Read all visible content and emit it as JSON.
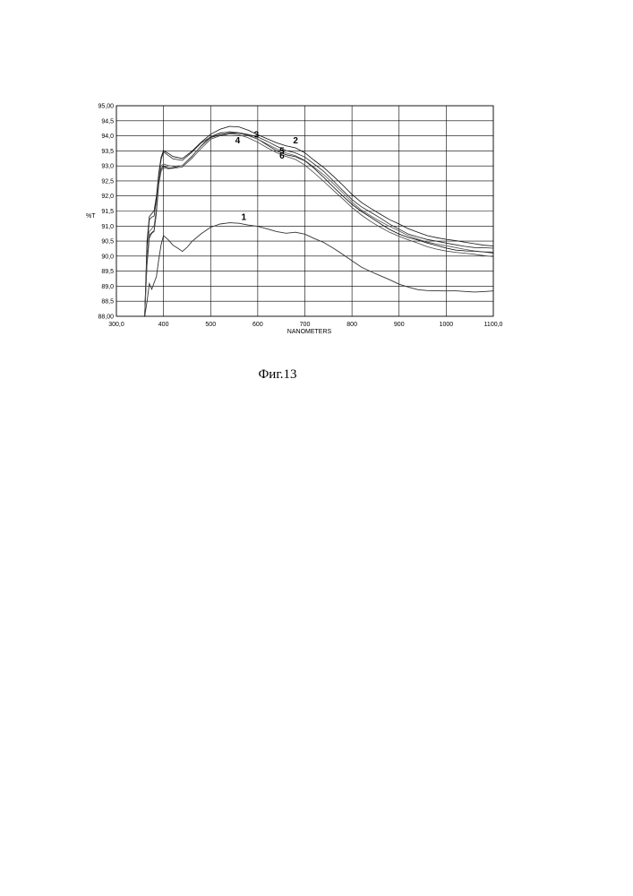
{
  "caption": "Фиг.13",
  "chart_data": {
    "type": "line",
    "xlabel": "NANOMETERS",
    "ylabel": "%T",
    "xlim": [
      300,
      1100
    ],
    "ylim": [
      88.0,
      95.0
    ],
    "x_ticks": [
      300,
      400,
      500,
      600,
      700,
      800,
      900,
      1000,
      1100
    ],
    "x_tick_labels": [
      "300,0",
      "400",
      "500",
      "600",
      "700",
      "800",
      "900",
      "1000",
      "1100,0"
    ],
    "y_ticks": [
      88.0,
      88.5,
      89.0,
      89.5,
      90.0,
      90.5,
      91.0,
      91.5,
      92.0,
      92.5,
      93.0,
      93.5,
      94.0,
      94.5,
      95.0
    ],
    "y_tick_labels": [
      "88,00",
      "88,5",
      "89,0",
      "89,5",
      "90,0",
      "90,5",
      "91,0",
      "91,5",
      "92,0",
      "92,5",
      "93,0",
      "93,5",
      "94,0",
      "94,5",
      "95,00"
    ],
    "grid": true,
    "series": [
      {
        "name": "1",
        "x": [
          360,
          365,
          370,
          375,
          380,
          385,
          390,
          395,
          400,
          410,
          420,
          430,
          440,
          450,
          460,
          480,
          500,
          520,
          540,
          560,
          580,
          600,
          620,
          640,
          660,
          680,
          700,
          720,
          740,
          760,
          780,
          800,
          820,
          840,
          860,
          880,
          900,
          920,
          940,
          960,
          980,
          1000,
          1020,
          1040,
          1060,
          1080,
          1100
        ],
        "y": [
          88.0,
          88.5,
          89.1,
          88.9,
          89.1,
          89.3,
          89.9,
          90.4,
          90.7,
          90.55,
          90.35,
          90.25,
          90.15,
          90.3,
          90.5,
          90.75,
          90.95,
          91.05,
          91.1,
          91.1,
          91.05,
          91.0,
          90.9,
          90.8,
          90.75,
          90.8,
          90.75,
          90.6,
          90.45,
          90.25,
          90.05,
          89.85,
          89.65,
          89.5,
          89.35,
          89.2,
          89.05,
          88.97,
          88.9,
          88.87,
          88.85,
          88.83,
          88.83,
          88.82,
          88.82,
          88.84,
          88.85
        ],
        "color": "#333333"
      },
      {
        "name": "2",
        "x": [
          360,
          365,
          370,
          375,
          380,
          385,
          390,
          395,
          400,
          410,
          420,
          440,
          460,
          480,
          500,
          520,
          540,
          560,
          580,
          600,
          620,
          640,
          660,
          680,
          700,
          720,
          740,
          760,
          780,
          800,
          820,
          840,
          860,
          880,
          900,
          920,
          940,
          960,
          980,
          1000,
          1020,
          1040,
          1060,
          1080,
          1100
        ],
        "y": [
          88.0,
          90.5,
          91.3,
          91.4,
          91.5,
          92.0,
          92.8,
          93.3,
          93.5,
          93.4,
          93.3,
          93.25,
          93.5,
          93.8,
          94.05,
          94.2,
          94.3,
          94.3,
          94.2,
          94.05,
          93.9,
          93.75,
          93.65,
          93.6,
          93.45,
          93.2,
          92.95,
          92.65,
          92.35,
          92.05,
          91.8,
          91.6,
          91.4,
          91.2,
          91.05,
          90.9,
          90.8,
          90.7,
          90.62,
          90.55,
          90.5,
          90.45,
          90.42,
          90.38,
          90.35
        ],
        "color": "#111111"
      },
      {
        "name": "3",
        "x": [
          360,
          365,
          370,
          375,
          380,
          385,
          390,
          395,
          400,
          410,
          420,
          440,
          460,
          480,
          500,
          520,
          540,
          560,
          580,
          600,
          620,
          640,
          660,
          680,
          700,
          720,
          740,
          760,
          780,
          800,
          820,
          840,
          860,
          880,
          900,
          920,
          940,
          960,
          980,
          1000,
          1020,
          1040,
          1060,
          1080,
          1100
        ],
        "y": [
          88.0,
          90.3,
          91.2,
          91.3,
          91.35,
          91.9,
          92.7,
          93.2,
          93.45,
          93.35,
          93.25,
          93.2,
          93.45,
          93.75,
          93.95,
          94.08,
          94.15,
          94.12,
          94.05,
          93.95,
          93.8,
          93.65,
          93.52,
          93.45,
          93.3,
          93.05,
          92.8,
          92.5,
          92.2,
          91.9,
          91.65,
          91.45,
          91.25,
          91.05,
          90.9,
          90.75,
          90.65,
          90.55,
          90.48,
          90.42,
          90.38,
          90.34,
          90.3,
          90.28,
          90.25
        ],
        "color": "#222222"
      },
      {
        "name": "4",
        "x": [
          360,
          365,
          370,
          375,
          380,
          385,
          390,
          395,
          400,
          410,
          420,
          440,
          460,
          480,
          500,
          520,
          540,
          560,
          580,
          600,
          620,
          640,
          660,
          680,
          700,
          720,
          740,
          760,
          780,
          800,
          820,
          840,
          860,
          880,
          900,
          920,
          940,
          960,
          980,
          1000,
          1020,
          1040,
          1060,
          1080,
          1100
        ],
        "y": [
          88.0,
          89.8,
          90.7,
          90.8,
          90.85,
          91.5,
          92.5,
          92.9,
          93.0,
          92.95,
          92.95,
          93.0,
          93.3,
          93.65,
          93.95,
          94.05,
          94.1,
          94.08,
          94.0,
          93.88,
          93.7,
          93.52,
          93.38,
          93.3,
          93.15,
          92.9,
          92.62,
          92.32,
          92.02,
          91.72,
          91.47,
          91.27,
          91.08,
          90.9,
          90.75,
          90.62,
          90.52,
          90.42,
          90.35,
          90.28,
          90.22,
          90.18,
          90.15,
          90.12,
          90.1
        ],
        "color": "#000000"
      },
      {
        "name": "5",
        "x": [
          360,
          365,
          370,
          375,
          380,
          385,
          390,
          395,
          400,
          410,
          420,
          440,
          460,
          480,
          500,
          520,
          540,
          560,
          580,
          600,
          620,
          640,
          660,
          680,
          700,
          720,
          740,
          760,
          780,
          800,
          820,
          840,
          860,
          880,
          900,
          920,
          940,
          960,
          980,
          1000,
          1020,
          1040,
          1060,
          1080,
          1100
        ],
        "y": [
          88.0,
          89.7,
          90.6,
          90.75,
          90.8,
          91.4,
          92.4,
          92.85,
          92.95,
          92.9,
          92.9,
          92.95,
          93.25,
          93.6,
          93.9,
          94.0,
          94.05,
          94.02,
          93.93,
          93.8,
          93.62,
          93.44,
          93.3,
          93.2,
          93.02,
          92.78,
          92.5,
          92.2,
          91.9,
          91.6,
          91.36,
          91.16,
          90.98,
          90.8,
          90.65,
          90.52,
          90.42,
          90.32,
          90.25,
          90.18,
          90.12,
          90.08,
          90.05,
          90.02,
          90.0
        ],
        "color": "#444444"
      },
      {
        "name": "",
        "x": [
          360,
          365,
          370,
          375,
          380,
          385,
          390,
          395,
          400,
          410,
          420,
          440,
          460,
          480,
          500,
          520,
          540,
          560,
          580,
          600,
          620,
          640,
          660,
          680,
          700,
          720,
          740,
          760,
          780,
          800,
          820,
          840,
          860,
          880,
          900,
          920,
          940,
          960,
          980,
          1000,
          1020,
          1040,
          1060,
          1080,
          1100
        ],
        "y": [
          88.0,
          89.9,
          90.8,
          90.9,
          91.0,
          91.6,
          92.55,
          93.0,
          93.05,
          93.0,
          92.98,
          93.02,
          93.32,
          93.68,
          93.97,
          94.08,
          94.12,
          94.1,
          94.02,
          93.9,
          93.72,
          93.55,
          93.42,
          93.35,
          93.2,
          92.96,
          92.7,
          92.4,
          92.1,
          91.8,
          91.55,
          91.35,
          91.15,
          90.97,
          90.82,
          90.68,
          90.58,
          90.48,
          90.4,
          90.33,
          90.27,
          90.22,
          90.19,
          90.16,
          90.14
        ],
        "color": "#555555"
      }
    ],
    "annotations": [
      {
        "text": "1",
        "x": 565,
        "y": 91.2
      },
      {
        "text": "2",
        "x": 675,
        "y": 93.75
      },
      {
        "text": "3",
        "x": 592,
        "y": 93.95
      },
      {
        "text": "4",
        "x": 552,
        "y": 93.75
      },
      {
        "text": "5",
        "x": 646,
        "y": 93.4
      },
      {
        "text": "6",
        "x": 646,
        "y": 93.25
      }
    ]
  }
}
